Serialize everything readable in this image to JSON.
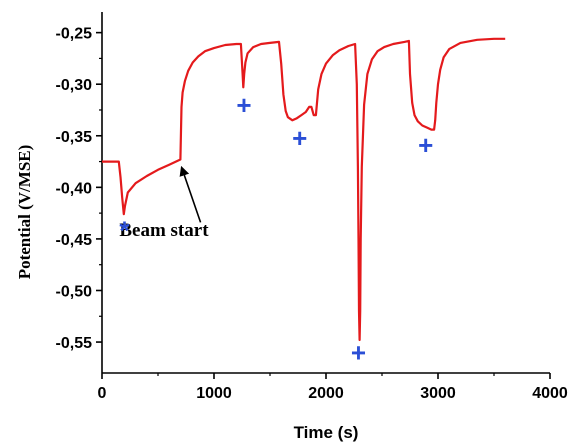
{
  "chart_data": {
    "type": "line",
    "title": "",
    "xlabel": "Time (s)",
    "ylabel": "Potential (V/MSE)",
    "xlim": [
      0,
      4000
    ],
    "ylim": [
      -0.58,
      -0.23
    ],
    "xticks": [
      0,
      1000,
      2000,
      3000,
      4000
    ],
    "xtick_labels": [
      "0",
      "1000",
      "2000",
      "3000",
      "4000"
    ],
    "yticks": [
      -0.55,
      -0.5,
      -0.45,
      -0.4,
      -0.35,
      -0.3,
      -0.25
    ],
    "ytick_labels": [
      "-0,55",
      "-0,50",
      "-0,45",
      "-0,40",
      "-0,35",
      "-0,30",
      "-0,25"
    ],
    "grid": false,
    "line_color": "#e41a1c",
    "marker_color": "#2b4fd6",
    "series": [
      {
        "x": [
          0,
          60,
          120,
          150,
          165,
          180,
          195,
          205,
          230,
          300,
          400,
          500,
          600,
          700,
          705,
          710,
          720,
          740,
          770,
          810,
          860,
          920,
          1000,
          1100,
          1200,
          1240,
          1255,
          1262,
          1270,
          1280,
          1300,
          1350,
          1420,
          1500,
          1580,
          1600,
          1620,
          1640,
          1660,
          1700,
          1740,
          1780,
          1820,
          1850,
          1870,
          1890,
          1910,
          1930,
          1960,
          2000,
          2060,
          2120,
          2200,
          2260,
          2275,
          2285,
          2290,
          2295,
          2300,
          2305,
          2310,
          2320,
          2340,
          2370,
          2410,
          2460,
          2520,
          2600,
          2700,
          2740,
          2750,
          2770,
          2790,
          2820,
          2860,
          2900,
          2940,
          2965,
          2975,
          2985,
          3000,
          3020,
          3050,
          3100,
          3200,
          3350,
          3500,
          3600
        ],
        "y": [
          -0.375,
          -0.375,
          -0.375,
          -0.375,
          -0.39,
          -0.41,
          -0.426,
          -0.418,
          -0.405,
          -0.396,
          -0.389,
          -0.383,
          -0.378,
          -0.373,
          -0.345,
          -0.322,
          -0.308,
          -0.297,
          -0.287,
          -0.279,
          -0.273,
          -0.268,
          -0.265,
          -0.262,
          -0.261,
          -0.261,
          -0.29,
          -0.303,
          -0.29,
          -0.279,
          -0.27,
          -0.264,
          -0.261,
          -0.26,
          -0.259,
          -0.28,
          -0.31,
          -0.326,
          -0.332,
          -0.335,
          -0.333,
          -0.33,
          -0.327,
          -0.322,
          -0.322,
          -0.33,
          -0.33,
          -0.305,
          -0.29,
          -0.28,
          -0.272,
          -0.267,
          -0.263,
          -0.261,
          -0.3,
          -0.38,
          -0.45,
          -0.52,
          -0.548,
          -0.52,
          -0.45,
          -0.38,
          -0.32,
          -0.29,
          -0.276,
          -0.268,
          -0.264,
          -0.261,
          -0.259,
          -0.258,
          -0.29,
          -0.318,
          -0.33,
          -0.336,
          -0.34,
          -0.342,
          -0.344,
          -0.344,
          -0.335,
          -0.318,
          -0.3,
          -0.286,
          -0.274,
          -0.266,
          -0.26,
          -0.257,
          -0.256,
          -0.256
        ]
      }
    ],
    "annotations": [
      {
        "text": "Beam start",
        "x": 155,
        "y": -0.447,
        "arrow_from": [
          880,
          -0.434
        ],
        "arrow_to": [
          712,
          -0.381
        ]
      },
      {
        "text": "*",
        "x": 200,
        "y": -0.442
      },
      {
        "text": "+",
        "x": 1268,
        "y": -0.32
      },
      {
        "text": "+",
        "x": 1765,
        "y": -0.352
      },
      {
        "text": "+",
        "x": 2290,
        "y": -0.56
      },
      {
        "text": "+",
        "x": 2890,
        "y": -0.359
      }
    ]
  }
}
